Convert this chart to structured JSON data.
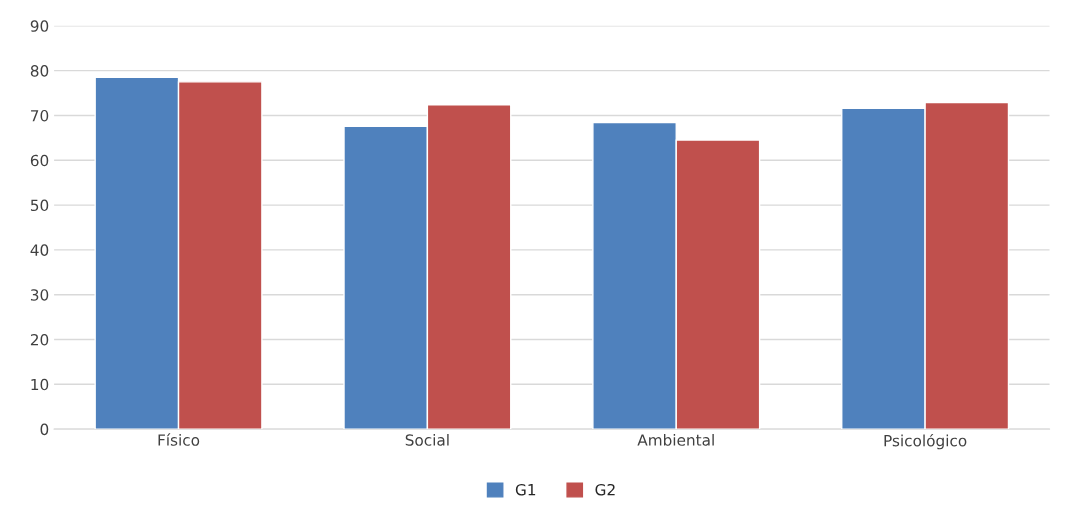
{
  "chart_data": {
    "type": "bar",
    "categories": [
      "Físico",
      "Social",
      "Ambiental",
      "Psicológico"
    ],
    "series": [
      {
        "name": "G1",
        "color": "#4f81bd",
        "values": [
          78.5,
          67.6,
          68.4,
          71.6
        ]
      },
      {
        "name": "G2",
        "color": "#c0504d",
        "values": [
          77.5,
          72.4,
          64.5,
          72.9
        ]
      }
    ],
    "ylim": [
      0,
      90
    ],
    "yticks": [
      0,
      10,
      20,
      30,
      40,
      50,
      60,
      70,
      80,
      90
    ],
    "grid": "y",
    "legend": "bottom"
  }
}
